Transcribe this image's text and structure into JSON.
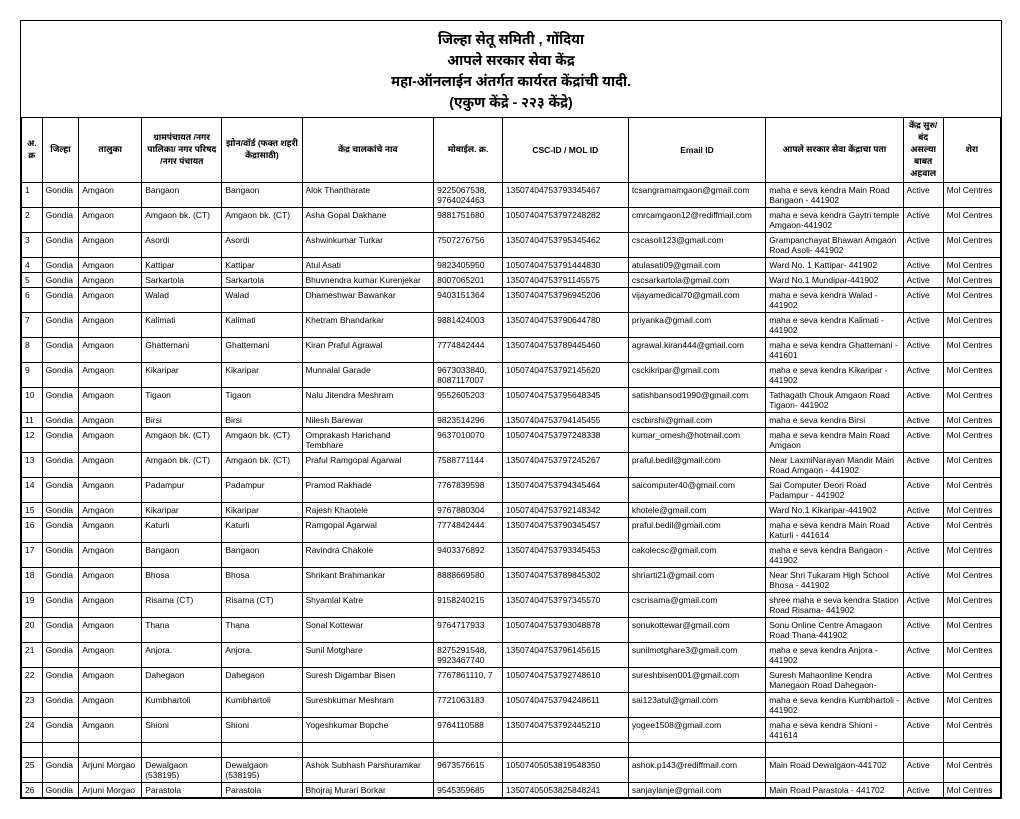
{
  "header": {
    "line1": "जिल्हा सेतू  समिती , गोंदिया",
    "line2": "आपले सरकार सेवा केंद्र",
    "line3": "महा-ऑनलाईन अंतर्गत कार्यरत केंद्रांची यादी.",
    "line4": "(एकुण केंद्रे - २२३ केंद्रे)"
  },
  "columns": {
    "sn": "अ.क्र",
    "district": "जिल्हा",
    "taluka": "तालुका",
    "gp": "ग्रामपंचायत /नगर पालिका/ नगर परिषद /नगर पंचायत",
    "zone": "झोन/वॉर्ड (फक्त शहरी केंद्रासाठी)",
    "operator": "केंद्र चालकांचे नाव",
    "mobile": "मोबाईल. क्र.",
    "cscid": "CSC-ID / MOL ID",
    "email": "Email ID",
    "address": "आपले सरकार सेवा केंद्राचा पता",
    "status": "केंद्र सुरु/बंद असल्या बाबत अहवाल",
    "remark": "शेरा"
  },
  "rows": [
    {
      "sn": "1",
      "d": "Gondia",
      "t": "Amgaon",
      "gp": "Bangaon",
      "z": "Bangaon",
      "n": "Alok Thantharate",
      "m": "9225067538, 9764024463",
      "c": "13507404753793345467",
      "e": "tcsangramamgaon@gmail.com",
      "a": "maha e seva kendra Main Road Bangaon - 441902",
      "s": "Active",
      "r": "Mol Centres"
    },
    {
      "sn": "2",
      "d": "Gondia",
      "t": "Amgaon",
      "gp": "Amgaon bk. (CT)",
      "z": "Amgaon bk. (CT)",
      "n": "Asha Gopal Dakhane",
      "m": "9881751680",
      "c": "10507404753797248282",
      "e": "cmrcamgaon12@rediffmail.com",
      "a": "maha e seva kendra Gaytri temple Amgaon-441902",
      "s": "Active",
      "r": "Mol Centres"
    },
    {
      "sn": "3",
      "d": "Gondia",
      "t": "Amgaon",
      "gp": "Asordi",
      "z": "Asordi",
      "n": "Ashwinkumar Turkar",
      "m": "7507276756",
      "c": "13507404753795345462",
      "e": "cscasoli123@gmail.com",
      "a": "Grampanchayat Bhawan Amgaon Road Asoli- 441902",
      "s": "Active",
      "r": "Mol Centres"
    },
    {
      "sn": "4",
      "d": "Gondia",
      "t": "Amgaon",
      "gp": "Kattipar",
      "z": "Kattipar",
      "n": "Atul Asati",
      "m": "9823405950",
      "c": "10507404753791444830",
      "e": "atulasati09@gmail.com",
      "a": "Ward No. 1 Kattipar- 441902",
      "s": "Active",
      "r": "Mol Centres"
    },
    {
      "sn": "5",
      "d": "Gondia",
      "t": "Amgaon",
      "gp": "Sarkartola",
      "z": "Sarkartola",
      "n": "Bhuvnendra kumar Kurenjekar",
      "m": "8007065201",
      "c": "13507404753791145575",
      "e": "cscsarkartola@gmail.com",
      "a": "Ward No.1 Mundipar-441902",
      "s": "Active",
      "r": "Mol Centres"
    },
    {
      "sn": "6",
      "d": "Gondia",
      "t": "Amgaon",
      "gp": "Walad",
      "z": "Walad",
      "n": "Dhameshwar Bawankar",
      "m": "9403151364",
      "c": "13507404753796945206",
      "e": "vijayamedical70@gmail.com",
      "a": "maha e seva kendra Walad - 441902",
      "s": "Active",
      "r": "Mol Centres"
    },
    {
      "sn": "7",
      "d": "Gondia",
      "t": "Amgaon",
      "gp": "Kalimati",
      "z": "Kalimati",
      "n": "Khetram Bhandarkar",
      "m": "9881424003",
      "c": "13507404753790644780",
      "e": "priyanka@gmail.com",
      "a": "maha e seva kendra Kalimati - 441902",
      "s": "Active",
      "r": "Mol Centres"
    },
    {
      "sn": "8",
      "d": "Gondia",
      "t": "Amgaon",
      "gp": "Ghattemani",
      "z": "Ghattemani",
      "n": "Kiran Praful Agrawal",
      "m": "7774842444",
      "c": "13507404753789445460",
      "e": "agrawal.kiran444@gmail.com",
      "a": "maha e seva kendra Ghattemani - 441601",
      "s": "Active",
      "r": "Mol Centres"
    },
    {
      "sn": "9",
      "d": "Gondia",
      "t": "Amgaon",
      "gp": "Kikaripar",
      "z": "Kikaripar",
      "n": "Munnalal Garade",
      "m": "9673033840, 8087117007",
      "c": "10507404753792145620",
      "e": "csckikripar@gmail.com",
      "a": "maha e seva kendra Kikaripar - 441902",
      "s": "Active",
      "r": "Mol Centres"
    },
    {
      "sn": "10",
      "d": "Gondia",
      "t": "Amgaon",
      "gp": "Tigaon",
      "z": "Tigaon",
      "n": "Nalu Jitendra Meshram",
      "m": "9552605203",
      "c": "10507404753795648345",
      "e": "satishbansod1990@gmail.com",
      "a": "Tathagath Chouk Amgaon Road Tigaon- 441902",
      "s": "Active",
      "r": "Mol Centres"
    },
    {
      "sn": "11",
      "d": "Gondia",
      "t": "Amgaon",
      "gp": "Birsi",
      "z": "Birsi",
      "n": "Nilesh Barewar",
      "m": "9823514296",
      "c": "13507404753794145455",
      "e": "cscbirshi@gmail.com",
      "a": "maha e seva kendra Birsi",
      "s": "Active",
      "r": "Mol Centres"
    },
    {
      "sn": "12",
      "d": "Gondia",
      "t": "Amgaon",
      "gp": "Amgaon bk. (CT)",
      "z": "Amgaon bk. (CT)",
      "n": "Omprakash Harichand Tembhare",
      "m": "9637010070",
      "c": "10507404753797248338",
      "e": "kumar_omesh@hotmail.com",
      "a": "maha e seva kendra Main Road Amgaon",
      "s": "Active",
      "r": "Mol Centres"
    },
    {
      "sn": "13",
      "d": "Gondia",
      "t": "Amgaon",
      "gp": "Amgaon bk. (CT)",
      "z": "Amgaon bk. (CT)",
      "n": "Praful Ramgopal Agarwal",
      "m": "7588771144",
      "c": "13507404753797245267",
      "e": "praful.bedil@gmail.com",
      "a": "Near LaxmiNarayan Mandir Main Road Amgaon - 441902",
      "s": "Active",
      "r": "Mol Centres"
    },
    {
      "sn": "14",
      "d": "Gondia",
      "t": "Amgaon",
      "gp": "Padampur",
      "z": "Padampur",
      "n": "Pramod Rakhade",
      "m": "7767839598",
      "c": "13507404753794345464",
      "e": "saicomputer40@gmail.com",
      "a": "Sai Computer Deori Road Padampur - 441902",
      "s": "Active",
      "r": "Mol Centres"
    },
    {
      "sn": "15",
      "d": "Gondia",
      "t": "Amgaon",
      "gp": "Kikaripar",
      "z": "Kikaripar",
      "n": "Rajesh Khaotele",
      "m": "9767880304",
      "c": "10507404753792148342",
      "e": "khotele@gmail.com",
      "a": "Ward No.1 Kikaripar-441902",
      "s": "Active",
      "r": "Mol Centres"
    },
    {
      "sn": "16",
      "d": "Gondia",
      "t": "Amgaon",
      "gp": "Katurli",
      "z": "Katurli",
      "n": "Ramgopal Agarwal",
      "m": "7774842444",
      "c": "13507404753790345457",
      "e": "praful.bedil@gmail.com",
      "a": "maha e seva kendra Main Road Katurli - 441614",
      "s": "Active",
      "r": "Mol Centres"
    },
    {
      "sn": "17",
      "d": "Gondia",
      "t": "Amgaon",
      "gp": "Bangaon",
      "z": "Bangaon",
      "n": "Ravindra Chakole",
      "m": "9403376892",
      "c": "13507404753793345453",
      "e": "cakolecsc@gmail.com",
      "a": "maha e seva kendra Bangaon - 441902",
      "s": "Active",
      "r": "Mol Centres"
    },
    {
      "sn": "18",
      "d": "Gondia",
      "t": "Amgaon",
      "gp": "Bhosa",
      "z": "Bhosa",
      "n": "Shrikant Brahmankar",
      "m": "8888669580",
      "c": "13507404753789845302",
      "e": "shriarti21@gmail.com",
      "a": "Near Shri Tukaram High School Bhosa - 441902",
      "s": "Active",
      "r": "Mol Centres"
    },
    {
      "sn": "19",
      "d": "Gondia",
      "t": "Amgaon",
      "gp": "Risama (CT)",
      "z": "Risama (CT)",
      "n": "Shyamlal Katre",
      "m": "9158240215",
      "c": "13507404753797345570",
      "e": "cscrisama@gmail.com",
      "a": "shree maha e seva kendra Station Road Risama- 441902",
      "s": "Active",
      "r": "Mol Centres"
    },
    {
      "sn": "20",
      "d": "Gondia",
      "t": "Amgaon",
      "gp": "Thana",
      "z": "Thana",
      "n": "Sonal Kottewar",
      "m": "9764717933",
      "c": "10507404753793048878",
      "e": "sonukottewar@gmail.com",
      "a": "Sonu Online Centre Amagaon Road Thana-441902",
      "s": "Active",
      "r": "Mol Centres"
    },
    {
      "sn": "21",
      "d": "Gondia",
      "t": "Amgaon",
      "gp": "Anjora.",
      "z": "Anjora.",
      "n": "Sunil Motghare",
      "m": "8275291548, 9923467740",
      "c": "13507404753796145615",
      "e": "sunilmotghare3@gmail.com",
      "a": "maha e seva kendra Anjora - 441902",
      "s": "Active",
      "r": "Mol Centres"
    },
    {
      "sn": "22",
      "d": "Gondia",
      "t": "Amgaon",
      "gp": "Dahegaon",
      "z": "Dahegaon",
      "n": "Suresh Digambar Bisen",
      "m": "7767861110, 7",
      "c": "10507404753792748610",
      "e": "sureshbisen001@gmail.com",
      "a": "Suresh Mahaonline Kendra Manegaon Road Dahegaon-",
      "s": "Active",
      "r": "Mol Centres"
    },
    {
      "sn": "23",
      "d": "Gondia",
      "t": "Amgaon",
      "gp": "Kumbhartoli",
      "z": "Kumbhartoli",
      "n": "Sureshkumar Meshram",
      "m": "7721063183",
      "c": "10507404753794248611",
      "e": "sai123atul@gmail.com",
      "a": "maha e seva kendra Kumbhartoli - 441902",
      "s": "Active",
      "r": "Mol Centres"
    },
    {
      "sn": "24",
      "d": "Gondia",
      "t": "Amgaon",
      "gp": "Shioni",
      "z": "Shioni",
      "n": "Yogeshkumar Bopche",
      "m": "9764110588",
      "c": "13507404753792445210",
      "e": "yogee1508@gmail.com",
      "a": "maha e seva kendra Shioni - 441614",
      "s": "Active",
      "r": "Mol Centres"
    }
  ],
  "rows2": [
    {
      "sn": "25",
      "d": "Gondia",
      "t": "Arjuni Morgao",
      "gp": "Dewalgaon (538195)",
      "z": "Dewalgaon (538195)",
      "n": "Ashok Subhash Parshuramkar",
      "m": "9673576615",
      "c": "10507405053819548350",
      "e": "ashok.p143@rediffmail.com",
      "a": "Main Road Dewalgaon-441702",
      "s": "Active",
      "r": "Mol Centres"
    },
    {
      "sn": "26",
      "d": "Gondia",
      "t": "Arjuni Morgao",
      "gp": "Parastola",
      "z": "Parastola",
      "n": "Bhojraj Murari Borkar",
      "m": "9545359685",
      "c": "13507405053825848241",
      "e": "sanjaylanje@gmail.com",
      "a": "Main Road Parastola - 441702",
      "s": "Active",
      "r": "Mol Centres"
    }
  ]
}
